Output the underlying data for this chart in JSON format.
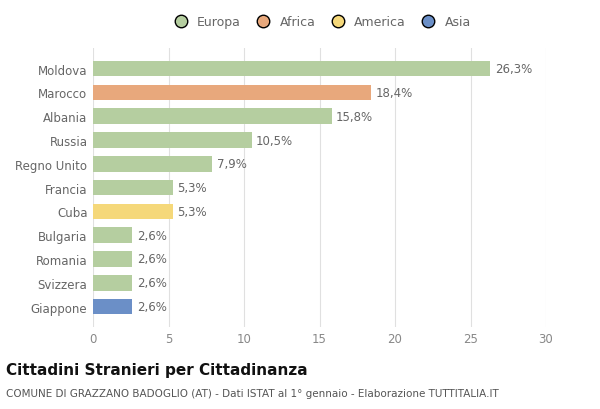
{
  "countries": [
    "Moldova",
    "Marocco",
    "Albania",
    "Russia",
    "Regno Unito",
    "Francia",
    "Cuba",
    "Bulgaria",
    "Romania",
    "Svizzera",
    "Giappone"
  ],
  "values": [
    26.3,
    18.4,
    15.8,
    10.5,
    7.9,
    5.3,
    5.3,
    2.6,
    2.6,
    2.6,
    2.6
  ],
  "labels": [
    "26,3%",
    "18,4%",
    "15,8%",
    "10,5%",
    "7,9%",
    "5,3%",
    "5,3%",
    "2,6%",
    "2,6%",
    "2,6%",
    "2,6%"
  ],
  "colors": [
    "#b5ceA0",
    "#e8a87c",
    "#b5ceA0",
    "#b5ceA0",
    "#b5ceA0",
    "#b5ceA0",
    "#f5d87a",
    "#b5ceA0",
    "#b5ceA0",
    "#b5ceA0",
    "#6b8fc7"
  ],
  "legend_labels": [
    "Europa",
    "Africa",
    "America",
    "Asia"
  ],
  "legend_colors": [
    "#b5ceA0",
    "#e8a87c",
    "#f5d87a",
    "#6b8fc7"
  ],
  "title": "Cittadini Stranieri per Cittadinanza",
  "subtitle": "COMUNE DI GRAZZANO BADOGLIO (AT) - Dati ISTAT al 1° gennaio - Elaborazione TUTTITALIA.IT",
  "xlim": [
    0,
    30
  ],
  "xticks": [
    0,
    5,
    10,
    15,
    20,
    25,
    30
  ],
  "bg_color": "#ffffff",
  "grid_color": "#e0e0e0",
  "bar_height": 0.65,
  "title_fontsize": 11,
  "subtitle_fontsize": 7.5,
  "tick_label_fontsize": 8.5,
  "value_fontsize": 8.5,
  "legend_fontsize": 9
}
